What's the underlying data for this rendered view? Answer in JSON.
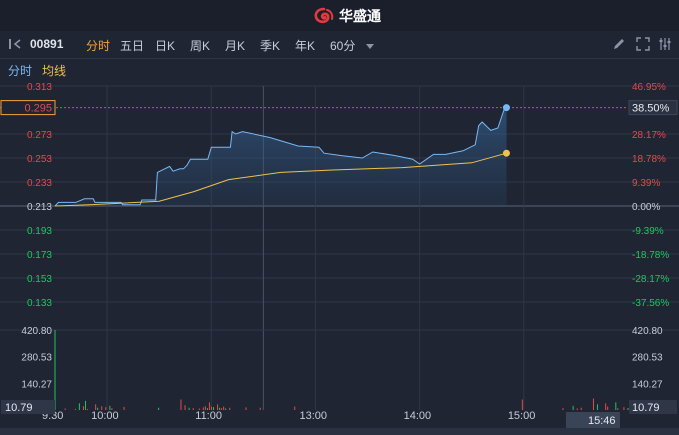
{
  "brand": {
    "name": "华盛通",
    "logo_icon": "wallstreet-swirl-logo-icon"
  },
  "toolbar": {
    "symbol": "00891",
    "tabs": [
      {
        "label": "分时",
        "active": true
      },
      {
        "label": "五日",
        "active": false
      },
      {
        "label": "日K",
        "active": false
      },
      {
        "label": "周K",
        "active": false
      },
      {
        "label": "月K",
        "active": false
      },
      {
        "label": "季K",
        "active": false
      },
      {
        "label": "年K",
        "active": false
      },
      {
        "label": "60分",
        "active": false
      }
    ],
    "icons": [
      "collapse-panel-icon",
      "dropdown-caret-icon",
      "draw-pencil-icon",
      "fullscreen-icon",
      "settings-icon"
    ]
  },
  "legend": {
    "series1": "分时",
    "series2": "均线"
  },
  "colors": {
    "price_line": "#7ab8f5",
    "avg_line": "#f0c24a",
    "up": "#e24b4b",
    "down": "#22c55e",
    "accent": "#f0a53c"
  },
  "price_axis": {
    "left_ticks": [
      "0.313",
      "0.273",
      "0.253",
      "0.233",
      "0.213",
      "0.193",
      "0.173",
      "0.153",
      "0.133"
    ],
    "right_ticks": [
      "46.95%",
      "28.17%",
      "18.78%",
      "9.39%",
      "0.00%",
      "-9.39%",
      "-18.78%",
      "-28.17%",
      "-37.56%"
    ],
    "current_price": "0.295",
    "current_change": "38.50%"
  },
  "volume_axis": {
    "left_ticks": [
      "420.80",
      "280.53",
      "140.27"
    ],
    "right_ticks": [
      "420.80",
      "280.53",
      "140.27"
    ],
    "current_left": "10.79",
    "current_right": "10.79"
  },
  "time_axis": {
    "labels": [
      "9:30",
      "10:00",
      "11:00",
      "13:00",
      "14:00",
      "15:00"
    ],
    "current": "15:46"
  },
  "chart_data": {
    "type": "line",
    "prev_close": 0.213,
    "ylim": [
      0.113,
      0.313
    ],
    "series": [
      {
        "name": "分时",
        "points": [
          [
            0,
            0.213
          ],
          [
            2,
            0.216
          ],
          [
            12,
            0.216
          ],
          [
            17,
            0.219
          ],
          [
            22,
            0.219
          ],
          [
            23,
            0.216
          ],
          [
            38,
            0.216
          ],
          [
            39,
            0.214
          ],
          [
            49,
            0.214
          ],
          [
            50,
            0.218
          ],
          [
            58,
            0.218
          ],
          [
            59,
            0.241
          ],
          [
            66,
            0.246
          ],
          [
            68,
            0.242
          ],
          [
            72,
            0.244
          ],
          [
            74,
            0.244
          ],
          [
            76,
            0.247
          ],
          [
            78,
            0.252
          ],
          [
            88,
            0.252
          ],
          [
            90,
            0.262
          ],
          [
            101,
            0.262
          ],
          [
            102,
            0.275
          ],
          [
            104,
            0.273
          ],
          [
            108,
            0.275
          ],
          [
            124,
            0.27
          ],
          [
            140,
            0.263
          ],
          [
            152,
            0.262
          ],
          [
            155,
            0.257
          ],
          [
            165,
            0.255
          ],
          [
            177,
            0.253
          ],
          [
            183,
            0.258
          ],
          [
            196,
            0.255
          ],
          [
            206,
            0.252
          ],
          [
            210,
            0.248
          ],
          [
            218,
            0.256
          ],
          [
            225,
            0.256
          ],
          [
            235,
            0.259
          ],
          [
            242,
            0.264
          ],
          [
            244,
            0.28
          ],
          [
            246,
            0.283
          ],
          [
            251,
            0.276
          ],
          [
            255,
            0.278
          ],
          [
            256,
            0.282
          ],
          [
            259,
            0.295
          ],
          [
            260,
            0.295
          ]
        ]
      },
      {
        "name": "均线",
        "points": [
          [
            0,
            0.213
          ],
          [
            20,
            0.214
          ],
          [
            60,
            0.217
          ],
          [
            80,
            0.225
          ],
          [
            100,
            0.235
          ],
          [
            130,
            0.241
          ],
          [
            160,
            0.243
          ],
          [
            200,
            0.245
          ],
          [
            240,
            0.249
          ],
          [
            260,
            0.257
          ]
        ]
      }
    ],
    "volume": [
      420.8,
      0,
      0,
      0,
      0,
      8,
      0,
      0,
      0,
      0,
      6,
      0,
      35,
      0,
      20,
      48,
      5,
      0,
      0,
      0,
      30,
      12,
      0,
      20,
      0,
      15,
      0,
      22,
      10,
      0,
      0,
      0,
      0,
      0,
      16,
      0,
      0,
      0,
      0,
      0,
      0,
      0,
      0,
      0,
      0,
      0,
      0,
      0,
      0,
      0,
      0,
      12,
      0,
      0,
      0,
      0,
      0,
      0,
      0,
      0,
      0,
      0,
      55,
      0,
      25,
      0,
      12,
      0,
      10,
      0,
      0,
      8,
      0,
      14,
      20,
      10,
      40,
      18,
      15,
      0,
      30,
      12,
      10,
      18,
      8,
      0,
      12,
      0,
      0,
      0,
      0,
      0,
      0,
      0,
      14,
      0,
      0,
      0,
      0,
      0,
      0,
      12,
      0,
      0,
      0,
      0,
      0,
      0,
      0,
      0,
      0,
      0,
      0,
      0,
      0,
      0,
      0,
      0,
      18,
      0,
      0,
      0,
      0,
      0,
      0,
      0,
      0,
      0,
      0,
      0,
      0,
      0,
      0,
      0,
      0,
      0,
      0,
      0,
      0,
      0,
      0,
      0,
      0,
      0,
      0,
      0,
      0,
      0,
      0,
      0,
      0,
      0,
      0,
      0,
      0,
      0,
      0,
      0,
      0,
      0,
      0,
      0,
      0,
      0,
      0,
      0,
      0,
      0,
      0,
      0,
      0,
      0,
      0,
      0,
      0,
      0,
      0,
      0,
      0,
      0,
      0,
      0,
      0,
      0,
      0,
      0,
      0,
      0,
      0,
      0,
      0,
      0,
      0,
      0,
      0,
      0,
      0,
      0,
      0,
      0,
      0,
      0,
      0,
      0,
      0,
      0,
      0,
      0,
      0,
      0,
      0,
      0,
      0,
      0,
      0,
      0,
      0,
      0,
      0,
      0,
      0,
      0,
      0,
      0,
      0,
      0,
      0,
      0,
      0,
      0,
      55,
      0,
      0,
      0,
      0,
      0,
      0,
      0,
      0,
      0,
      0,
      0,
      0,
      0,
      0,
      0,
      0,
      0,
      0,
      0,
      10,
      0,
      0,
      0,
      0,
      22,
      0,
      8,
      0,
      12,
      0,
      0,
      0,
      0,
      0,
      60,
      0,
      30,
      0,
      0,
      0,
      35,
      18,
      0,
      0,
      0,
      40,
      10,
      0,
      0,
      15,
      0,
      10.79
    ]
  }
}
